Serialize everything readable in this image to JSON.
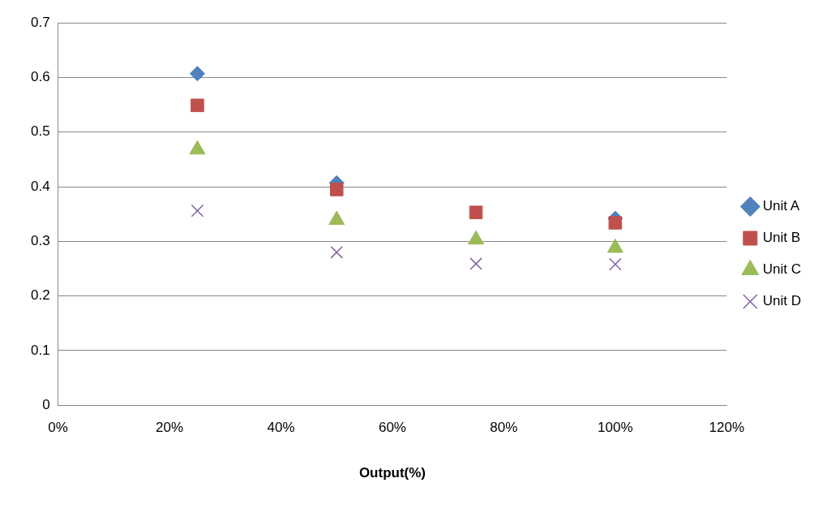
{
  "chart_data": {
    "type": "scatter",
    "xlabel": "Output(%)",
    "x": [
      25,
      50,
      75,
      100
    ],
    "series": [
      {
        "name": "Unit A",
        "color": "#4f81bd",
        "marker": "diamond",
        "values": [
          0.607,
          0.407,
          null,
          0.342
        ]
      },
      {
        "name": "Unit B",
        "color": "#c0504d",
        "marker": "square",
        "values": [
          0.549,
          0.395,
          0.353,
          0.334
        ]
      },
      {
        "name": "Unit C",
        "color": "#9bbb59",
        "marker": "triangle",
        "values": [
          0.468,
          0.339,
          0.303,
          0.288
        ]
      },
      {
        "name": "Unit D",
        "color": "#8064a2",
        "marker": "cross",
        "values": [
          0.356,
          0.28,
          0.259,
          0.258
        ]
      }
    ],
    "xlim": [
      0,
      120
    ],
    "xticks": [
      {
        "value": 0,
        "label": "0%"
      },
      {
        "value": 20,
        "label": "20%"
      },
      {
        "value": 40,
        "label": "40%"
      },
      {
        "value": 60,
        "label": "60%"
      },
      {
        "value": 80,
        "label": "80%"
      },
      {
        "value": 100,
        "label": "100%"
      },
      {
        "value": 120,
        "label": "120%"
      }
    ],
    "ylim": [
      0,
      0.7
    ],
    "yticks": [
      0,
      0.1,
      0.2,
      0.3,
      0.4,
      0.5,
      0.6,
      0.7
    ],
    "grid": "y",
    "legend": "right"
  }
}
